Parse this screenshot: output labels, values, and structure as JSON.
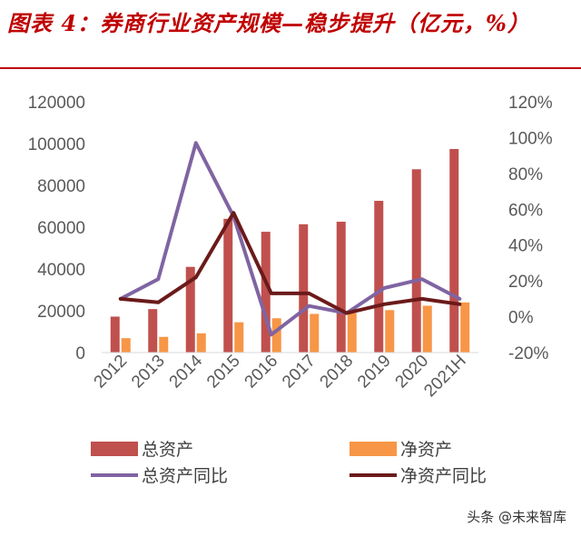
{
  "title": "图表 4：券商行业资产规模—稳步提升（亿元，%）",
  "watermark": "头条 @未来智库",
  "colors": {
    "title_red": "#c00000",
    "total_assets_bar": "#c0504d",
    "net_assets_bar": "#f79646",
    "total_assets_yoy_line": "#8064a2",
    "net_assets_yoy_line": "#6b1a1a",
    "axis_text": "#595959"
  },
  "chart_data": {
    "type": "bar",
    "title": "",
    "categories": [
      "2012",
      "2013",
      "2014",
      "2015",
      "2016",
      "2017",
      "2018",
      "2019",
      "2020",
      "2021H"
    ],
    "y_left": {
      "range": [
        0,
        120000
      ],
      "ticks": [
        0,
        20000,
        40000,
        60000,
        80000,
        100000,
        120000
      ]
    },
    "y_right": {
      "range": [
        -20,
        120
      ],
      "ticks": [
        -20,
        0,
        20,
        40,
        60,
        80,
        100,
        120
      ],
      "format": "percent"
    },
    "grid": false,
    "legend_position": "bottom",
    "series": [
      {
        "name": "总资产",
        "type": "bar",
        "axis": "left",
        "values": [
          17200,
          20800,
          41000,
          64000,
          57800,
          61400,
          62600,
          72600,
          87700,
          97400
        ]
      },
      {
        "name": "净资产",
        "type": "bar",
        "axis": "left",
        "values": [
          6900,
          7500,
          9200,
          14500,
          16400,
          18500,
          18900,
          20300,
          22400,
          24000
        ]
      },
      {
        "name": "总资产同比",
        "type": "line",
        "axis": "right",
        "values": [
          10,
          21,
          97,
          56,
          -10,
          6,
          2,
          16,
          21,
          10
        ]
      },
      {
        "name": "净资产同比",
        "type": "line",
        "axis": "right",
        "values": [
          10,
          8,
          22,
          58,
          13,
          13,
          2,
          7,
          10,
          7
        ]
      }
    ]
  }
}
